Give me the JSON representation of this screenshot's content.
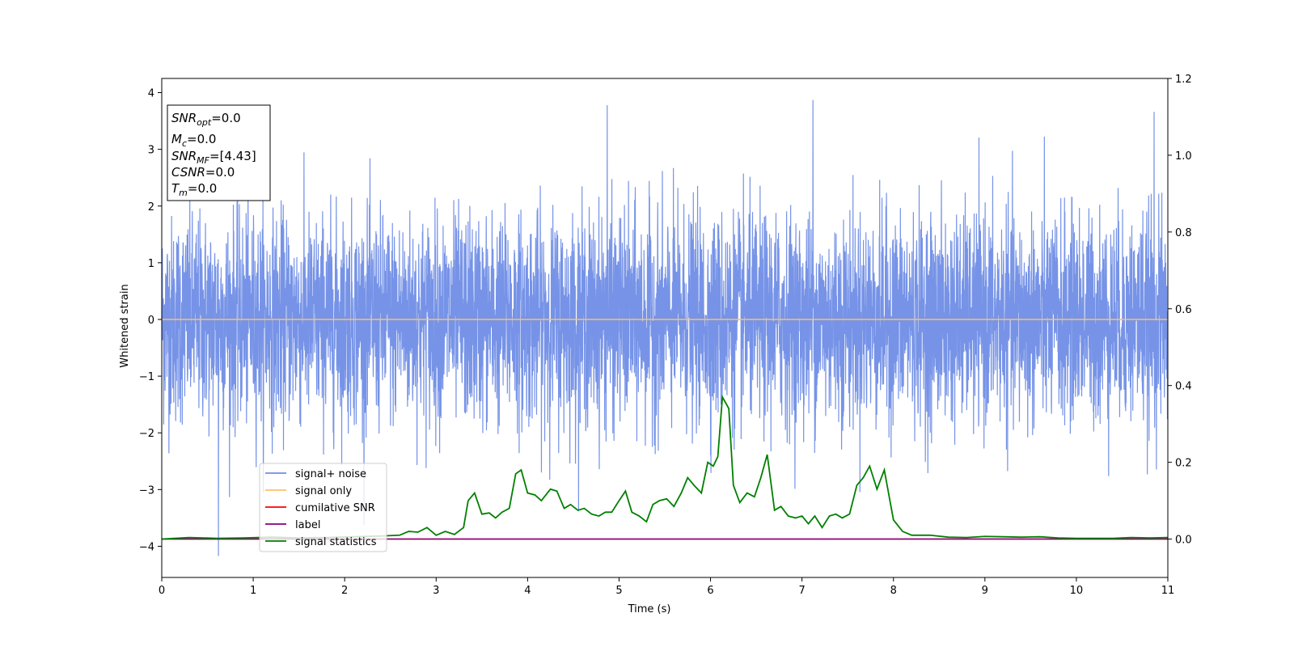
{
  "chart_data": {
    "type": "line",
    "xlabel": "Time (s)",
    "ylabel": "Whitened strain",
    "xlim": [
      0,
      11
    ],
    "ylim_left": [
      -4.55,
      4.25
    ],
    "ylim_right": [
      -0.1,
      1.2
    ],
    "x_ticks": [
      0,
      1,
      2,
      3,
      4,
      5,
      6,
      7,
      8,
      9,
      10,
      11
    ],
    "y_left_ticks": [
      4,
      3,
      2,
      1,
      0,
      -1,
      -2,
      -3,
      -4
    ],
    "y_right_ticks": [
      1.2,
      1.0,
      0.8,
      0.6,
      0.4,
      0.2,
      0.0
    ],
    "y_left_tick_labels": [
      "4",
      "3",
      "2",
      "1",
      "0",
      "−1",
      "−2",
      "−3",
      "−4"
    ],
    "y_right_tick_labels": [
      "1.2",
      "1.0",
      "0.8",
      "0.6",
      "0.4",
      "0.2",
      "0.0"
    ],
    "grid": false,
    "legend_placement": "lower-left",
    "info_box": {
      "snr_opt": "=0.0",
      "mc": "=0.0",
      "snr_mf": "=[4.43]",
      "csnr": "=0.0",
      "tm": "=0.0"
    },
    "series": [
      {
        "name": "signal+ noise",
        "axis": "left",
        "color": "#6f8de6",
        "description_stats": {
          "mean": 0.0,
          "std": 0.9,
          "max": 3.87,
          "min": -4.17
        },
        "notable_peaks": [
          [
            0.62,
            -4.17
          ],
          [
            4.87,
            3.78
          ],
          [
            7.12,
            3.87
          ],
          [
            10.85,
            3.66
          ]
        ]
      },
      {
        "name": "signal only",
        "axis": "left",
        "color": "#ffbf66",
        "x": [
          0,
          11
        ],
        "y": [
          0,
          0
        ]
      },
      {
        "name": "cumilative SNR",
        "axis": "right",
        "color": "#ff0000",
        "x": [
          0,
          11
        ],
        "y": [
          0,
          0
        ]
      },
      {
        "name": "label",
        "axis": "right",
        "color": "#800080",
        "x": [
          0,
          11
        ],
        "y": [
          0,
          0
        ]
      },
      {
        "name": "signal statistics",
        "axis": "right",
        "color": "#008000",
        "x": [
          0.0,
          0.3,
          0.6,
          0.9,
          1.2,
          1.5,
          1.8,
          2.1,
          2.4,
          2.6,
          2.7,
          2.8,
          2.9,
          3.0,
          3.1,
          3.2,
          3.3,
          3.35,
          3.42,
          3.5,
          3.58,
          3.65,
          3.72,
          3.8,
          3.87,
          3.93,
          4.0,
          4.08,
          4.15,
          4.25,
          4.32,
          4.4,
          4.47,
          4.55,
          4.62,
          4.7,
          4.78,
          4.85,
          4.92,
          5.0,
          5.07,
          5.14,
          5.22,
          5.3,
          5.37,
          5.44,
          5.52,
          5.6,
          5.68,
          5.75,
          5.82,
          5.9,
          5.97,
          6.03,
          6.08,
          6.13,
          6.2,
          6.25,
          6.32,
          6.4,
          6.48,
          6.55,
          6.62,
          6.7,
          6.77,
          6.85,
          6.93,
          7.0,
          7.07,
          7.14,
          7.22,
          7.3,
          7.37,
          7.44,
          7.52,
          7.6,
          7.67,
          7.74,
          7.82,
          7.9,
          8.0,
          8.1,
          8.2,
          8.4,
          8.6,
          8.8,
          9.0,
          9.2,
          9.4,
          9.6,
          9.8,
          10.0,
          10.2,
          10.4,
          10.6,
          10.8,
          11.0
        ],
        "y": [
          0.0,
          0.004,
          0.002,
          0.003,
          0.005,
          0.003,
          0.004,
          0.006,
          0.008,
          0.01,
          0.02,
          0.018,
          0.03,
          0.01,
          0.02,
          0.012,
          0.03,
          0.1,
          0.12,
          0.065,
          0.068,
          0.055,
          0.07,
          0.08,
          0.17,
          0.18,
          0.12,
          0.115,
          0.1,
          0.13,
          0.125,
          0.08,
          0.09,
          0.075,
          0.08,
          0.065,
          0.06,
          0.07,
          0.07,
          0.1,
          0.125,
          0.07,
          0.06,
          0.045,
          0.09,
          0.1,
          0.105,
          0.085,
          0.12,
          0.16,
          0.14,
          0.12,
          0.2,
          0.19,
          0.215,
          0.37,
          0.34,
          0.14,
          0.095,
          0.12,
          0.11,
          0.16,
          0.22,
          0.075,
          0.085,
          0.06,
          0.055,
          0.06,
          0.04,
          0.06,
          0.03,
          0.06,
          0.065,
          0.055,
          0.065,
          0.14,
          0.16,
          0.19,
          0.13,
          0.18,
          0.05,
          0.02,
          0.01,
          0.01,
          0.005,
          0.004,
          0.007,
          0.006,
          0.005,
          0.006,
          0.003,
          0.002,
          0.002,
          0.002,
          0.004,
          0.003,
          0.004
        ]
      }
    ]
  }
}
